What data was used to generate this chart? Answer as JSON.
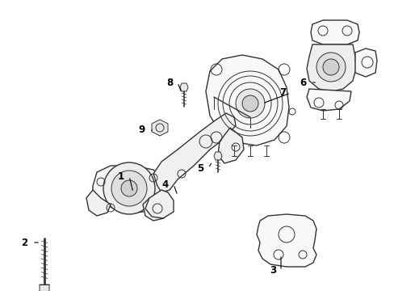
{
  "background_color": "#ffffff",
  "line_color": "#333333",
  "label_color": "#000000",
  "figure_width": 4.89,
  "figure_height": 3.6,
  "dpi": 100
}
